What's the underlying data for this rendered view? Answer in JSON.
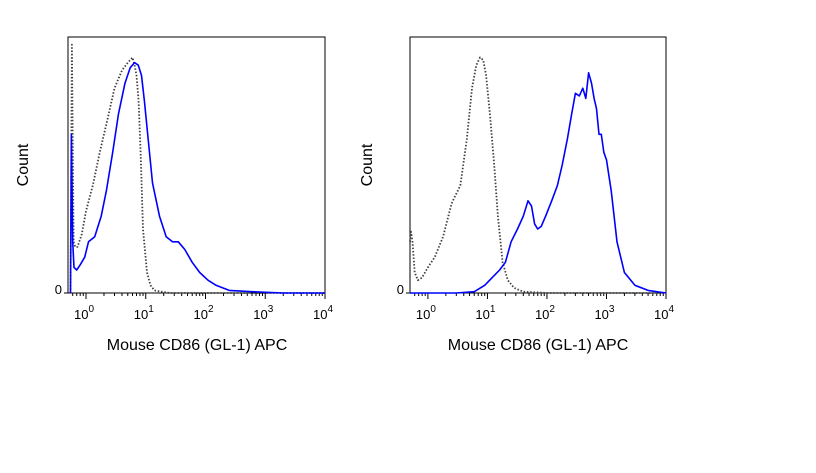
{
  "chart_data": [
    {
      "type": "line",
      "xlabel": "Mouse CD86 (GL-1) APC",
      "ylabel": "Count",
      "xscale": "log",
      "xlim": [
        0.5,
        10000
      ],
      "ylim": [
        0,
        100
      ],
      "x_ticks": [
        {
          "value": 1,
          "base": "10",
          "exp": "0"
        },
        {
          "value": 10,
          "base": "10",
          "exp": "1"
        },
        {
          "value": 100,
          "base": "10",
          "exp": "2"
        },
        {
          "value": 1000,
          "base": "10",
          "exp": "3"
        },
        {
          "value": 10000,
          "base": "10",
          "exp": "4"
        }
      ],
      "y_ticks": [
        {
          "value": 0,
          "label": "0"
        }
      ],
      "grid": false,
      "series": [
        {
          "style": "dotted",
          "color": "#404040",
          "x": [
            0.55,
            0.58,
            0.6,
            0.62,
            0.66,
            0.72,
            0.85,
            1.0,
            1.3,
            1.7,
            2.3,
            3.0,
            4.0,
            5.0,
            6.0,
            6.5,
            7.0,
            7.6,
            8.2,
            9.0,
            10.5,
            12.0,
            14.0,
            18.0,
            25.0,
            40.0,
            100.0,
            1000.0,
            10000.0
          ],
          "y": [
            0,
            97,
            60,
            20,
            18,
            18,
            23,
            32,
            42,
            55,
            68,
            80,
            87,
            90,
            92,
            89,
            85,
            75,
            55,
            25,
            8,
            3,
            1,
            0.5,
            0,
            0,
            0,
            0,
            0
          ]
        },
        {
          "style": "solid",
          "color": "#0000ff",
          "x": [
            0.55,
            0.57,
            0.6,
            0.63,
            0.7,
            0.8,
            0.95,
            1.1,
            1.4,
            1.8,
            2.2,
            2.8,
            3.5,
            4.5,
            5.5,
            6.5,
            7.5,
            8.5,
            9.5,
            11.0,
            13.0,
            17.0,
            22.0,
            28.0,
            35.0,
            45.0,
            60.0,
            80.0,
            110.0,
            150.0,
            250.0,
            600.0,
            2000.0,
            10000.0
          ],
          "y": [
            0,
            62,
            20,
            10,
            9,
            11,
            14,
            20,
            22,
            30,
            40,
            55,
            70,
            82,
            88,
            90,
            89,
            85,
            75,
            60,
            43,
            30,
            22,
            20,
            20,
            17,
            12,
            8,
            5,
            3,
            1,
            0.5,
            0,
            0
          ]
        }
      ]
    },
    {
      "type": "line",
      "xlabel": "Mouse CD86 (GL-1) APC",
      "ylabel": "Count",
      "xscale": "log",
      "xlim": [
        0.5,
        10000
      ],
      "ylim": [
        0,
        100
      ],
      "x_ticks": [
        {
          "value": 1,
          "base": "10",
          "exp": "0"
        },
        {
          "value": 10,
          "base": "10",
          "exp": "1"
        },
        {
          "value": 100,
          "base": "10",
          "exp": "2"
        },
        {
          "value": 1000,
          "base": "10",
          "exp": "3"
        },
        {
          "value": 10000,
          "base": "10",
          "exp": "4"
        }
      ],
      "y_ticks": [
        {
          "value": 0,
          "label": "0"
        }
      ],
      "grid": false,
      "series": [
        {
          "style": "dotted",
          "color": "#404040",
          "x": [
            0.5,
            0.52,
            0.55,
            0.6,
            0.68,
            0.8,
            1.0,
            1.3,
            1.8,
            2.5,
            3.5,
            4.5,
            5.5,
            6.5,
            7.5,
            8.5,
            9.5,
            11.0,
            13.0,
            15.0,
            18.0,
            22.0,
            28.0,
            40.0,
            100.0,
            1000.0,
            10000.0
          ],
          "y": [
            20,
            24,
            20,
            8,
            5,
            6,
            10,
            14,
            22,
            35,
            42,
            60,
            80,
            89,
            92,
            91,
            85,
            70,
            50,
            30,
            12,
            5,
            2,
            0.5,
            0,
            0,
            0
          ]
        },
        {
          "style": "solid",
          "color": "#0000ff",
          "x": [
            0.5,
            1.0,
            3.0,
            6.0,
            9.0,
            12.0,
            16.0,
            20.0,
            25.0,
            32.0,
            40.0,
            48.0,
            55.0,
            62.0,
            70.0,
            80.0,
            95.0,
            120.0,
            150.0,
            180.0,
            220.0,
            260.0,
            300.0,
            350.0,
            400.0,
            450.0,
            500.0,
            560.0,
            620.0,
            680.0,
            750.0,
            820.0,
            900.0,
            1000.0,
            1200.0,
            1500.0,
            2000.0,
            3000.0,
            5000.0,
            10000.0
          ],
          "y": [
            0,
            0,
            0,
            0.5,
            3,
            6,
            9,
            12,
            20,
            25,
            30,
            36,
            34,
            27,
            25,
            26,
            30,
            36,
            42,
            50,
            60,
            70,
            78,
            77,
            80,
            76,
            86,
            82,
            76,
            72,
            62,
            62,
            55,
            52,
            40,
            20,
            8,
            3,
            1,
            0
          ]
        }
      ]
    }
  ]
}
